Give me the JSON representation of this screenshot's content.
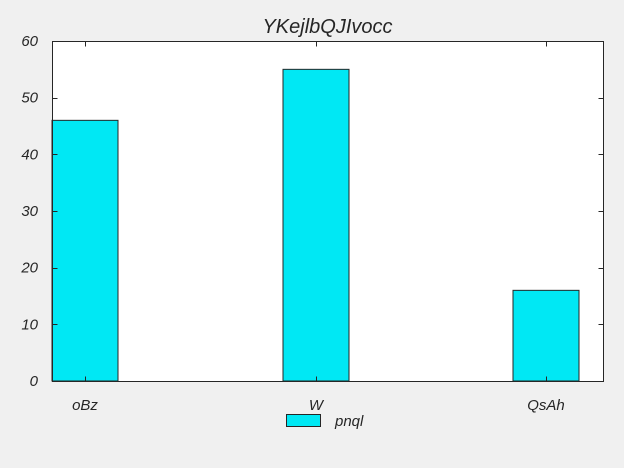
{
  "chart_data": {
    "type": "bar",
    "title": "YKejlbQJIvocc",
    "xlabel": "",
    "ylabel": "",
    "categories": [
      "oBz",
      "W",
      "QsAh"
    ],
    "series": [
      {
        "name": "pnql",
        "values": [
          46,
          55,
          16
        ],
        "color": "#00e8f4"
      }
    ],
    "ylim": [
      0,
      60
    ],
    "yticks": [
      0,
      10,
      20,
      30,
      40,
      50,
      60
    ],
    "grid": false,
    "legend": "bottom-center"
  }
}
